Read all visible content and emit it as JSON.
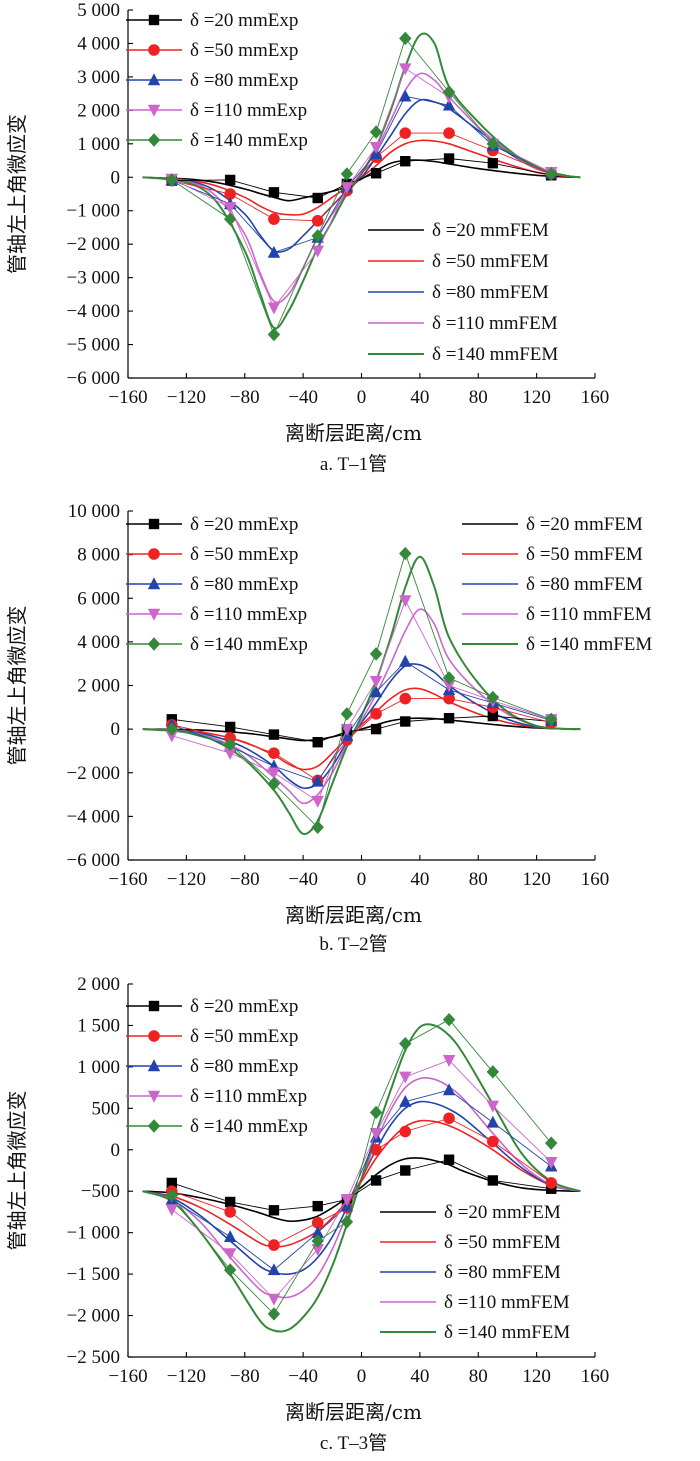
{
  "colors": [
    "#000000",
    "#ee2222",
    "#2244aa",
    "#cc66cc",
    "#33883a"
  ],
  "chart_data": [
    {
      "type": "line",
      "panel": "a",
      "caption": "a. T–1管",
      "xlabel": "离断层距离/cm",
      "ylabel": "管轴左上角微应变",
      "xlim": [
        -160,
        160
      ],
      "ylim": [
        -6000,
        5000
      ],
      "xticks": [
        "-160",
        "-120",
        "-80",
        "-40",
        "0",
        "40",
        "80",
        "120",
        "160"
      ],
      "yticks": [
        "-6 000",
        "-5 000",
        "-4 000",
        "-3 000",
        "-2 000",
        "-1 000",
        "0",
        "1 000",
        "2 000",
        "3 000",
        "4 000",
        "5 000"
      ],
      "x": [
        -130,
        -90,
        -60,
        -30,
        -10,
        10,
        30,
        60,
        90,
        130
      ],
      "series": [
        {
          "name": "δ =20 mmExp",
          "values": [
            -100,
            -80,
            -450,
            -620,
            -200,
            120,
            480,
            560,
            420,
            60
          ]
        },
        {
          "name": "δ =50 mmExp",
          "values": [
            -100,
            -500,
            -1250,
            -1300,
            -400,
            600,
            1320,
            1320,
            800,
            100
          ]
        },
        {
          "name": "δ =80 mmExp",
          "values": [
            -80,
            -800,
            -2250,
            -1800,
            -300,
            700,
            2420,
            2150,
            950,
            120
          ]
        },
        {
          "name": "δ =110 mmExp",
          "values": [
            -50,
            -900,
            -3900,
            -2200,
            -300,
            900,
            3250,
            2400,
            1000,
            150
          ]
        },
        {
          "name": "δ =140 mmExp",
          "values": [
            -80,
            -1250,
            -4700,
            -1750,
            100,
            1350,
            4150,
            2550,
            1000,
            100
          ]
        }
      ],
      "fem": {
        "x": [
          -150,
          -120,
          -100,
          -80,
          -70,
          -60,
          -50,
          -40,
          -30,
          -20,
          -10,
          0,
          10,
          20,
          30,
          40,
          50,
          60,
          80,
          100,
          120,
          140,
          150
        ],
        "series": [
          {
            "name": "δ =20 mmFEM",
            "values": [
              0,
              -50,
              -150,
              -350,
              -480,
              -600,
              -700,
              -620,
              -520,
              -420,
              -280,
              -50,
              200,
              420,
              500,
              510,
              470,
              400,
              260,
              150,
              60,
              10,
              0
            ]
          },
          {
            "name": "δ =50 mmFEM",
            "values": [
              0,
              -80,
              -250,
              -600,
              -850,
              -1050,
              -1120,
              -1100,
              -900,
              -600,
              -300,
              0,
              350,
              750,
              1000,
              1100,
              1080,
              1000,
              700,
              400,
              150,
              30,
              0
            ]
          },
          {
            "name": "δ =80 mmFEM",
            "values": [
              0,
              -100,
              -400,
              -1100,
              -1700,
              -2200,
              -2150,
              -1750,
              -1300,
              -850,
              -400,
              0,
              600,
              1250,
              1900,
              2300,
              2250,
              2050,
              1400,
              750,
              250,
              50,
              0
            ]
          },
          {
            "name": "δ =110 mmFEM",
            "values": [
              0,
              -120,
              -550,
              -1700,
              -2800,
              -3700,
              -3500,
              -2700,
              -1800,
              -1100,
              -450,
              150,
              800,
              1700,
              2600,
              3100,
              2900,
              2400,
              1500,
              800,
              250,
              50,
              0
            ]
          },
          {
            "name": "δ =140 mmFEM",
            "values": [
              0,
              -150,
              -700,
              -2200,
              -3400,
              -4500,
              -4000,
              -3100,
              -2100,
              -1300,
              -500,
              100,
              900,
              2000,
              3300,
              4250,
              4000,
              2700,
              1650,
              850,
              280,
              50,
              0
            ]
          }
        ]
      }
    },
    {
      "type": "line",
      "panel": "b",
      "caption": "b. T–2管",
      "xlabel": "离断层距离/cm",
      "ylabel": "管轴左上角微应变",
      "xlim": [
        -160,
        160
      ],
      "ylim": [
        -6000,
        10000
      ],
      "xticks": [
        "-160",
        "-120",
        "-80",
        "-40",
        "0",
        "40",
        "80",
        "120",
        "160"
      ],
      "yticks": [
        "-6 000",
        "-4 000",
        "-2 000",
        "0",
        "2 000",
        "4 000",
        "6 000",
        "8 000",
        "10 000"
      ],
      "x": [
        -130,
        -90,
        -60,
        -30,
        -10,
        10,
        30,
        60,
        90,
        130
      ],
      "series": [
        {
          "name": "δ =20 mmExp",
          "values": [
            450,
            100,
            -250,
            -600,
            -100,
            0,
            350,
            500,
            600,
            350
          ]
        },
        {
          "name": "δ =50 mmExp",
          "values": [
            200,
            -400,
            -1100,
            -2350,
            -500,
            700,
            1400,
            1400,
            1000,
            300
          ]
        },
        {
          "name": "δ =80 mmExp",
          "values": [
            200,
            -800,
            -1700,
            -2400,
            -300,
            1700,
            3100,
            1800,
            1200,
            400
          ]
        },
        {
          "name": "δ =110 mmExp",
          "values": [
            -300,
            -1100,
            -2000,
            -3300,
            0,
            2200,
            5900,
            2000,
            1300,
            450
          ]
        },
        {
          "name": "δ =140 mmExp",
          "values": [
            0,
            -700,
            -2500,
            -4500,
            700,
            3450,
            8050,
            2350,
            1450,
            450
          ]
        }
      ],
      "fem": {
        "x": [
          -150,
          -120,
          -100,
          -80,
          -60,
          -50,
          -40,
          -30,
          -20,
          -10,
          0,
          10,
          20,
          30,
          40,
          50,
          60,
          80,
          100,
          120,
          140,
          150
        ],
        "series": [
          {
            "name": "δ =20 mmFEM",
            "values": [
              0,
              -20,
              -80,
              -180,
              -350,
              -450,
              -520,
              -480,
              -350,
              -200,
              0,
              200,
              380,
              480,
              500,
              480,
              420,
              280,
              150,
              50,
              10,
              0
            ]
          },
          {
            "name": "δ =50 mmFEM",
            "values": [
              0,
              -80,
              -250,
              -600,
              -1200,
              -1600,
              -1850,
              -1700,
              -1100,
              -400,
              200,
              800,
              1400,
              1800,
              1850,
              1600,
              1250,
              700,
              300,
              80,
              10,
              0
            ]
          },
          {
            "name": "δ =80 mmFEM",
            "values": [
              0,
              -100,
              -350,
              -850,
              -1700,
              -2300,
              -2700,
              -2500,
              -1700,
              -600,
              300,
              1200,
              2200,
              2900,
              2950,
              2600,
              2000,
              1100,
              450,
              100,
              10,
              0
            ]
          },
          {
            "name": "δ =110 mmFEM",
            "values": [
              0,
              -120,
              -450,
              -1100,
              -2200,
              -2800,
              -3400,
              -3000,
              -2000,
              -700,
              400,
              1600,
              3000,
              4500,
              5500,
              4800,
              3200,
              1700,
              700,
              150,
              10,
              0
            ]
          },
          {
            "name": "δ =140 mmFEM",
            "values": [
              0,
              -150,
              -550,
              -1400,
              -2800,
              -3800,
              -4800,
              -4200,
              -2500,
              -800,
              600,
              2200,
              4200,
              6500,
              7900,
              6500,
              4200,
              2100,
              800,
              150,
              10,
              0
            ]
          }
        ]
      }
    },
    {
      "type": "line",
      "panel": "c",
      "caption": "c. T–3管",
      "xlabel": "离断层距离/cm",
      "ylabel": "管轴左上角微应变",
      "xlim": [
        -160,
        160
      ],
      "ylim": [
        -2500,
        2000
      ],
      "xticks": [
        "-160",
        "-120",
        "-80",
        "-40",
        "0",
        "40",
        "80",
        "120",
        "160"
      ],
      "yticks": [
        "-2 500",
        "-2 000",
        "-1 500",
        "-1 000",
        "-500",
        "0",
        "500",
        "1 000",
        "1 500",
        "2 000"
      ],
      "x": [
        -130,
        -90,
        -60,
        -30,
        -10,
        10,
        30,
        60,
        90,
        130
      ],
      "series": [
        {
          "name": "δ =20 mmExp",
          "values": [
            -400,
            -630,
            -730,
            -680,
            -600,
            -370,
            -250,
            -120,
            -370,
            -470
          ]
        },
        {
          "name": "δ =50 mmExp",
          "values": [
            -500,
            -750,
            -1150,
            -880,
            -700,
            0,
            220,
            380,
            100,
            -400
          ]
        },
        {
          "name": "δ =80 mmExp",
          "values": [
            -600,
            -1050,
            -1450,
            -1000,
            -680,
            150,
            580,
            720,
            330,
            -200
          ]
        },
        {
          "name": "δ =110 mmExp",
          "values": [
            -720,
            -1250,
            -1800,
            -1200,
            -600,
            200,
            880,
            1080,
            530,
            -150
          ]
        },
        {
          "name": "δ =140 mmExp",
          "values": [
            -550,
            -1450,
            -1980,
            -1100,
            -870,
            450,
            1280,
            1570,
            940,
            80
          ]
        }
      ],
      "fem": {
        "x": [
          -150,
          -130,
          -110,
          -90,
          -70,
          -60,
          -50,
          -40,
          -30,
          -20,
          -10,
          0,
          10,
          20,
          30,
          40,
          50,
          60,
          70,
          90,
          110,
          130,
          150
        ],
        "series": [
          {
            "name": "δ =20 mmFEM",
            "values": [
              -500,
              -520,
              -580,
              -660,
              -760,
              -820,
              -860,
              -850,
              -800,
              -700,
              -580,
              -450,
              -300,
              -180,
              -110,
              -100,
              -130,
              -180,
              -260,
              -380,
              -460,
              -490,
              -500
            ]
          },
          {
            "name": "δ =50 mmFEM",
            "values": [
              -500,
              -560,
              -700,
              -900,
              -1120,
              -1170,
              -1150,
              -1080,
              -980,
              -820,
              -620,
              -380,
              -100,
              120,
              280,
              350,
              340,
              290,
              210,
              0,
              -250,
              -430,
              -500
            ]
          },
          {
            "name": "δ =80 mmFEM",
            "values": [
              -500,
              -580,
              -800,
              -1100,
              -1400,
              -1480,
              -1500,
              -1450,
              -1300,
              -1050,
              -700,
              -350,
              0,
              300,
              500,
              580,
              560,
              490,
              380,
              80,
              -220,
              -430,
              -500
            ]
          },
          {
            "name": "δ =110 mmFEM",
            "values": [
              -500,
              -600,
              -880,
              -1300,
              -1680,
              -1760,
              -1780,
              -1700,
              -1520,
              -1200,
              -780,
              -350,
              100,
              480,
              750,
              860,
              850,
              760,
              610,
              200,
              -180,
              -420,
              -500
            ]
          },
          {
            "name": "δ =140 mmFEM",
            "values": [
              -500,
              -620,
              -1000,
              -1500,
              -2050,
              -2180,
              -2170,
              -2020,
              -1780,
              -1400,
              -900,
              -350,
              200,
              720,
              1200,
              1480,
              1500,
              1380,
              1150,
              550,
              -50,
              -380,
              -500
            ]
          }
        ]
      }
    }
  ]
}
